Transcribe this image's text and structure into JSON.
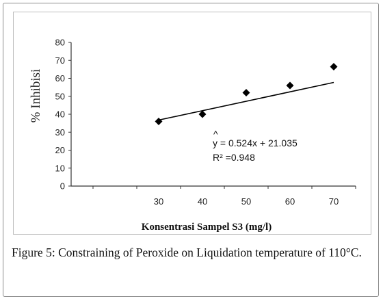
{
  "figure_caption": {
    "label": "Figure 5:",
    "text": "Constraining of Peroxide on Liquidation temperature of 110°C."
  },
  "chart_data": {
    "type": "scatter",
    "title": "",
    "xlabel": "Konsentrasi Sampel S3 (mg/l)",
    "ylabel": "% Inhibisi",
    "xlim": [
      10,
      75
    ],
    "ylim": [
      0,
      80
    ],
    "x_ticks": [
      30,
      40,
      50,
      60,
      70
    ],
    "y_ticks": [
      0,
      10,
      20,
      30,
      40,
      50,
      60,
      70,
      80
    ],
    "grid": false,
    "legend": "none",
    "series": [
      {
        "marker": "diamond",
        "color": "#000000",
        "points": [
          {
            "x": 30,
            "y": 36
          },
          {
            "x": 40,
            "y": 40
          },
          {
            "x": 50,
            "y": 52
          },
          {
            "x": 60,
            "y": 56
          },
          {
            "x": 70,
            "y": 66.5
          }
        ]
      }
    ],
    "trendline": {
      "slope": 0.524,
      "intercept": 21.035,
      "x_range": [
        30,
        70
      ],
      "color": "#000000"
    },
    "annotations": {
      "equation": "y = 0.524x + 21.035",
      "r_squared": "R² =0.948"
    }
  }
}
